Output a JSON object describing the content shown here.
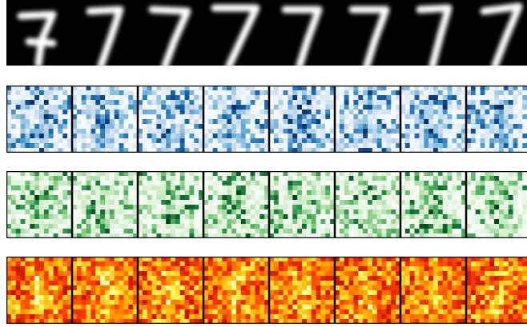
{
  "rows": [
    {
      "cmap": [
        "#000000",
        "#ffffff"
      ]
    },
    {
      "cmap": [
        "#f7fbff",
        "#c6dbef",
        "#6baed6",
        "#2171b5",
        "#08306b"
      ]
    },
    {
      "cmap": [
        "#f7fcf5",
        "#c7e9c0",
        "#74c476",
        "#238b45",
        "#00441b"
      ]
    },
    {
      "cmap": [
        "#0b0000",
        "#b00000",
        "#ff3c00",
        "#ffb000",
        "#ffff60",
        "#ffffff"
      ]
    }
  ]
}
